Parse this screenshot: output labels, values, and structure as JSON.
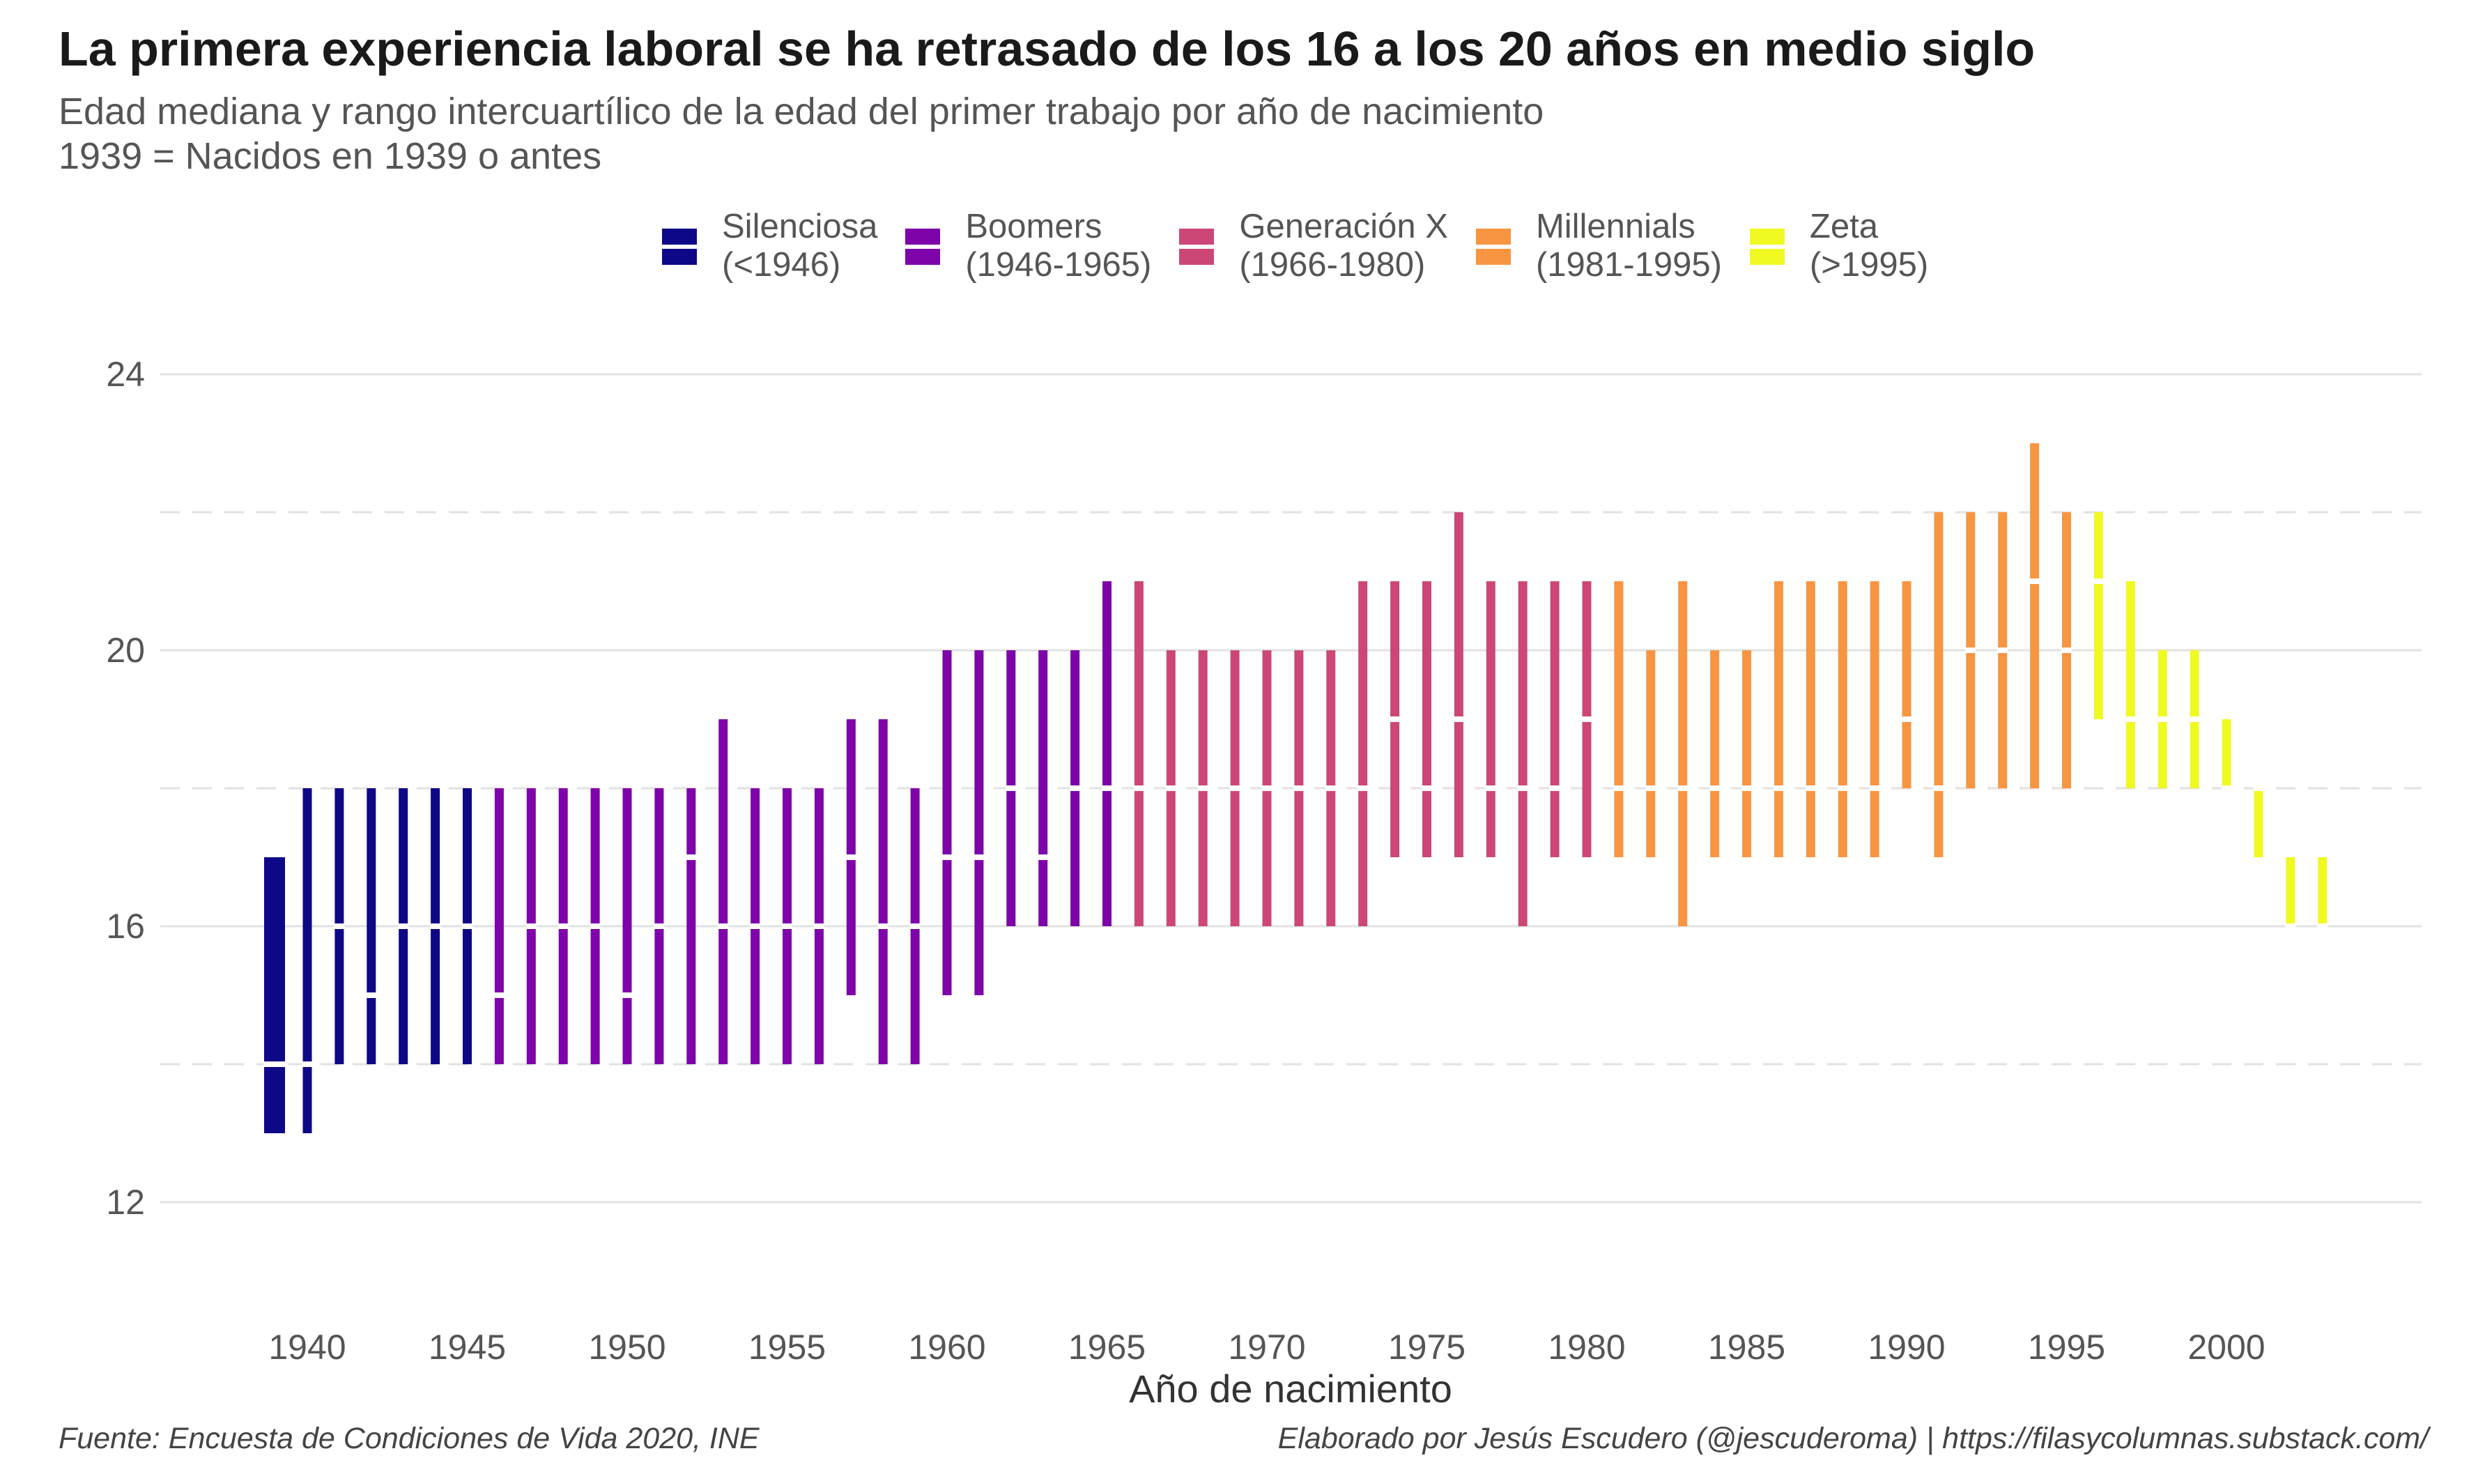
{
  "title": "La primera experiencia laboral se ha retrasado de los 16 a los 20 años en medio siglo",
  "subtitle": [
    "Edad mediana y rango intercuartílico de la edad del primer trabajo por año de nacimiento",
    "1939 = Nacidos en 1939 o antes"
  ],
  "caption_left": "Fuente: Encuesta de Condiciones de Vida 2020, INE",
  "caption_right": "Elaborado por Jesús Escudero (@jescuderoma) | https://filasycolumnas.substack.com/",
  "legend": [
    {
      "line1": "Silenciosa",
      "line2": "(<1946)",
      "color": "#0d0887"
    },
    {
      "line1": "Boomers",
      "line2": "(1946-1965)",
      "color": "#7e03a8"
    },
    {
      "line1": "Generación X",
      "line2": "(1966-1980)",
      "color": "#cc4778"
    },
    {
      "line1": "Millennials",
      "line2": "(1981-1995)",
      "color": "#f89540"
    },
    {
      "line1": "Zeta",
      "line2": "(>1995)",
      "color": "#f0f921"
    }
  ],
  "chart_data": {
    "type": "range-bar",
    "xlabel": "Año de nacimiento",
    "ylabel": "",
    "ylim": [
      10.5,
      25.5
    ],
    "yticks": [
      12,
      16,
      20,
      24
    ],
    "xticks": [
      1940,
      1945,
      1950,
      1955,
      1960,
      1965,
      1970,
      1975,
      1980,
      1985,
      1990,
      1995,
      2000
    ],
    "grid_major_y": true,
    "grid_minor_y_dashed": [
      14,
      18,
      22
    ],
    "legend_position": "top",
    "data": [
      {
        "year": 1939,
        "q1": 13,
        "median": 14,
        "q3": 17,
        "gen": 0
      },
      {
        "year": 1940,
        "q1": 13,
        "median": 14,
        "q3": 18,
        "gen": 0
      },
      {
        "year": 1941,
        "q1": 14,
        "median": 16,
        "q3": 18,
        "gen": 0
      },
      {
        "year": 1942,
        "q1": 14,
        "median": 15,
        "q3": 18,
        "gen": 0
      },
      {
        "year": 1943,
        "q1": 14,
        "median": 16,
        "q3": 18,
        "gen": 0
      },
      {
        "year": 1944,
        "q1": 14,
        "median": 16,
        "q3": 18,
        "gen": 0
      },
      {
        "year": 1945,
        "q1": 14,
        "median": 16,
        "q3": 18,
        "gen": 0
      },
      {
        "year": 1946,
        "q1": 14,
        "median": 15,
        "q3": 18,
        "gen": 1
      },
      {
        "year": 1947,
        "q1": 14,
        "median": 16,
        "q3": 18,
        "gen": 1
      },
      {
        "year": 1948,
        "q1": 14,
        "median": 16,
        "q3": 18,
        "gen": 1
      },
      {
        "year": 1949,
        "q1": 14,
        "median": 16,
        "q3": 18,
        "gen": 1
      },
      {
        "year": 1950,
        "q1": 14,
        "median": 15,
        "q3": 18,
        "gen": 1
      },
      {
        "year": 1951,
        "q1": 14,
        "median": 16,
        "q3": 18,
        "gen": 1
      },
      {
        "year": 1952,
        "q1": 14,
        "median": 17,
        "q3": 18,
        "gen": 1
      },
      {
        "year": 1953,
        "q1": 14,
        "median": 16,
        "q3": 19,
        "gen": 1
      },
      {
        "year": 1954,
        "q1": 14,
        "median": 16,
        "q3": 18,
        "gen": 1
      },
      {
        "year": 1955,
        "q1": 14,
        "median": 16,
        "q3": 18,
        "gen": 1
      },
      {
        "year": 1956,
        "q1": 14,
        "median": 16,
        "q3": 18,
        "gen": 1
      },
      {
        "year": 1957,
        "q1": 15,
        "median": 17,
        "q3": 19,
        "gen": 1
      },
      {
        "year": 1958,
        "q1": 14,
        "median": 16,
        "q3": 19,
        "gen": 1
      },
      {
        "year": 1959,
        "q1": 14,
        "median": 16,
        "q3": 18,
        "gen": 1
      },
      {
        "year": 1960,
        "q1": 15,
        "median": 17,
        "q3": 20,
        "gen": 1
      },
      {
        "year": 1961,
        "q1": 15,
        "median": 17,
        "q3": 20,
        "gen": 1
      },
      {
        "year": 1962,
        "q1": 16,
        "median": 18,
        "q3": 20,
        "gen": 1
      },
      {
        "year": 1963,
        "q1": 16,
        "median": 17,
        "q3": 20,
        "gen": 1
      },
      {
        "year": 1964,
        "q1": 16,
        "median": 18,
        "q3": 20,
        "gen": 1
      },
      {
        "year": 1965,
        "q1": 16,
        "median": 18,
        "q3": 21,
        "gen": 1
      },
      {
        "year": 1966,
        "q1": 16,
        "median": 18,
        "q3": 21,
        "gen": 2
      },
      {
        "year": 1967,
        "q1": 16,
        "median": 18,
        "q3": 20,
        "gen": 2
      },
      {
        "year": 1968,
        "q1": 16,
        "median": 18,
        "q3": 20,
        "gen": 2
      },
      {
        "year": 1969,
        "q1": 16,
        "median": 18,
        "q3": 20,
        "gen": 2
      },
      {
        "year": 1970,
        "q1": 16,
        "median": 18,
        "q3": 20,
        "gen": 2
      },
      {
        "year": 1971,
        "q1": 16,
        "median": 18,
        "q3": 20,
        "gen": 2
      },
      {
        "year": 1972,
        "q1": 16,
        "median": 18,
        "q3": 20,
        "gen": 2
      },
      {
        "year": 1973,
        "q1": 16,
        "median": 18,
        "q3": 21,
        "gen": 2
      },
      {
        "year": 1974,
        "q1": 17,
        "median": 19,
        "q3": 21,
        "gen": 2
      },
      {
        "year": 1975,
        "q1": 17,
        "median": 18,
        "q3": 21,
        "gen": 2
      },
      {
        "year": 1976,
        "q1": 17,
        "median": 19,
        "q3": 22,
        "gen": 2
      },
      {
        "year": 1977,
        "q1": 17,
        "median": 18,
        "q3": 21,
        "gen": 2
      },
      {
        "year": 1978,
        "q1": 16,
        "median": 18,
        "q3": 21,
        "gen": 2
      },
      {
        "year": 1979,
        "q1": 17,
        "median": 18,
        "q3": 21,
        "gen": 2
      },
      {
        "year": 1980,
        "q1": 17,
        "median": 19,
        "q3": 21,
        "gen": 2
      },
      {
        "year": 1981,
        "q1": 17,
        "median": 18,
        "q3": 21,
        "gen": 3
      },
      {
        "year": 1982,
        "q1": 17,
        "median": 18,
        "q3": 20,
        "gen": 3
      },
      {
        "year": 1983,
        "q1": 16,
        "median": 18,
        "q3": 21,
        "gen": 3
      },
      {
        "year": 1984,
        "q1": 17,
        "median": 18,
        "q3": 20,
        "gen": 3
      },
      {
        "year": 1985,
        "q1": 17,
        "median": 18,
        "q3": 20,
        "gen": 3
      },
      {
        "year": 1986,
        "q1": 17,
        "median": 18,
        "q3": 21,
        "gen": 3
      },
      {
        "year": 1987,
        "q1": 17,
        "median": 18,
        "q3": 21,
        "gen": 3
      },
      {
        "year": 1988,
        "q1": 17,
        "median": 18,
        "q3": 21,
        "gen": 3
      },
      {
        "year": 1989,
        "q1": 17,
        "median": 18,
        "q3": 21,
        "gen": 3
      },
      {
        "year": 1990,
        "q1": 18,
        "median": 19,
        "q3": 21,
        "gen": 3
      },
      {
        "year": 1991,
        "q1": 17,
        "median": 18,
        "q3": 22,
        "gen": 3
      },
      {
        "year": 1992,
        "q1": 18,
        "median": 20,
        "q3": 22,
        "gen": 3
      },
      {
        "year": 1993,
        "q1": 18,
        "median": 20,
        "q3": 22,
        "gen": 3
      },
      {
        "year": 1994,
        "q1": 18,
        "median": 21,
        "q3": 23,
        "gen": 3
      },
      {
        "year": 1995,
        "q1": 18,
        "median": 20,
        "q3": 22,
        "gen": 3
      },
      {
        "year": 1996,
        "q1": 19,
        "median": 21,
        "q3": 22,
        "gen": 4
      },
      {
        "year": 1997,
        "q1": 18,
        "median": 19,
        "q3": 21,
        "gen": 4
      },
      {
        "year": 1998,
        "q1": 18,
        "median": 19,
        "q3": 20,
        "gen": 4
      },
      {
        "year": 1999,
        "q1": 18,
        "median": 19,
        "q3": 20,
        "gen": 4
      },
      {
        "year": 2000,
        "q1": 18,
        "median": 18,
        "q3": 19,
        "gen": 4
      },
      {
        "year": 2001,
        "q1": 17,
        "median": 18,
        "q3": 18,
        "gen": 4
      },
      {
        "year": 2002,
        "q1": 16,
        "median": 16,
        "q3": 17,
        "gen": 4
      },
      {
        "year": 2003,
        "q1": 16,
        "median": 16,
        "q3": 17,
        "gen": 4
      }
    ]
  }
}
